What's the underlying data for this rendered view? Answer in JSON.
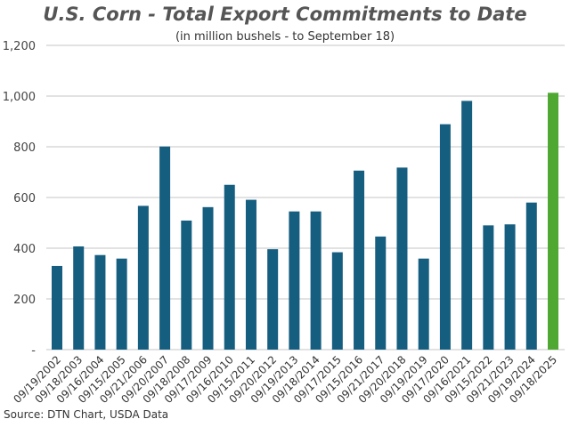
{
  "chart_data": {
    "type": "bar",
    "title": "U.S. Corn - Total Export Commitments to Date",
    "subtitle": "(in million bushels - to September 18)",
    "source": "Source: DTN Chart, USDA Data",
    "categories": [
      "09/19/2002",
      "09/18/2003",
      "09/16/2004",
      "09/15/2005",
      "09/21/2006",
      "09/20/2007",
      "09/18/2008",
      "09/17/2009",
      "09/16/2010",
      "09/15/2011",
      "09/20/2012",
      "09/19/2013",
      "09/18/2014",
      "09/17/2015",
      "09/15/2016",
      "09/21/2017",
      "09/20/2018",
      "09/19/2019",
      "09/17/2020",
      "09/16/2021",
      "09/15/2022",
      "09/21/2023",
      "09/19/2024",
      "09/18/2025"
    ],
    "values": [
      330,
      407,
      373,
      359,
      567,
      801,
      509,
      562,
      650,
      591,
      396,
      545,
      545,
      384,
      706,
      446,
      718,
      359,
      889,
      981,
      490,
      494,
      580,
      1013
    ],
    "ylim": [
      0,
      1200
    ],
    "yticks": [
      0,
      200,
      400,
      600,
      800,
      1000,
      1200
    ],
    "ytick_labels": [
      "-",
      "200",
      "400",
      "600",
      "800",
      "1,000",
      "1,200"
    ],
    "grid": true,
    "colors": {
      "bar": "#165e80",
      "highlight": "#4ea832",
      "grid": "#d9d9d9"
    },
    "highlight_index": 23
  }
}
